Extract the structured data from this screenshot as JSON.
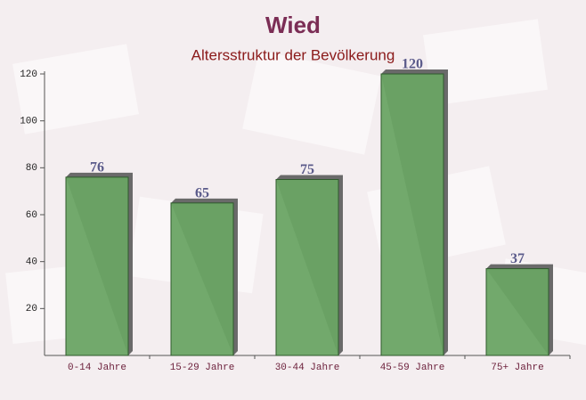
{
  "chart_data": {
    "type": "bar",
    "title": "Wied",
    "subtitle": "Altersstruktur der Bevölkerung",
    "categories": [
      "0-14 Jahre",
      "15-29 Jahre",
      "30-44 Jahre",
      "45-59 Jahre",
      "75+ Jahre"
    ],
    "values": [
      76,
      65,
      75,
      120,
      37
    ],
    "color": "#6aa464",
    "ylim": [
      0,
      120
    ],
    "yticks": [
      20,
      40,
      60,
      80,
      100,
      120
    ],
    "grid": false
  }
}
